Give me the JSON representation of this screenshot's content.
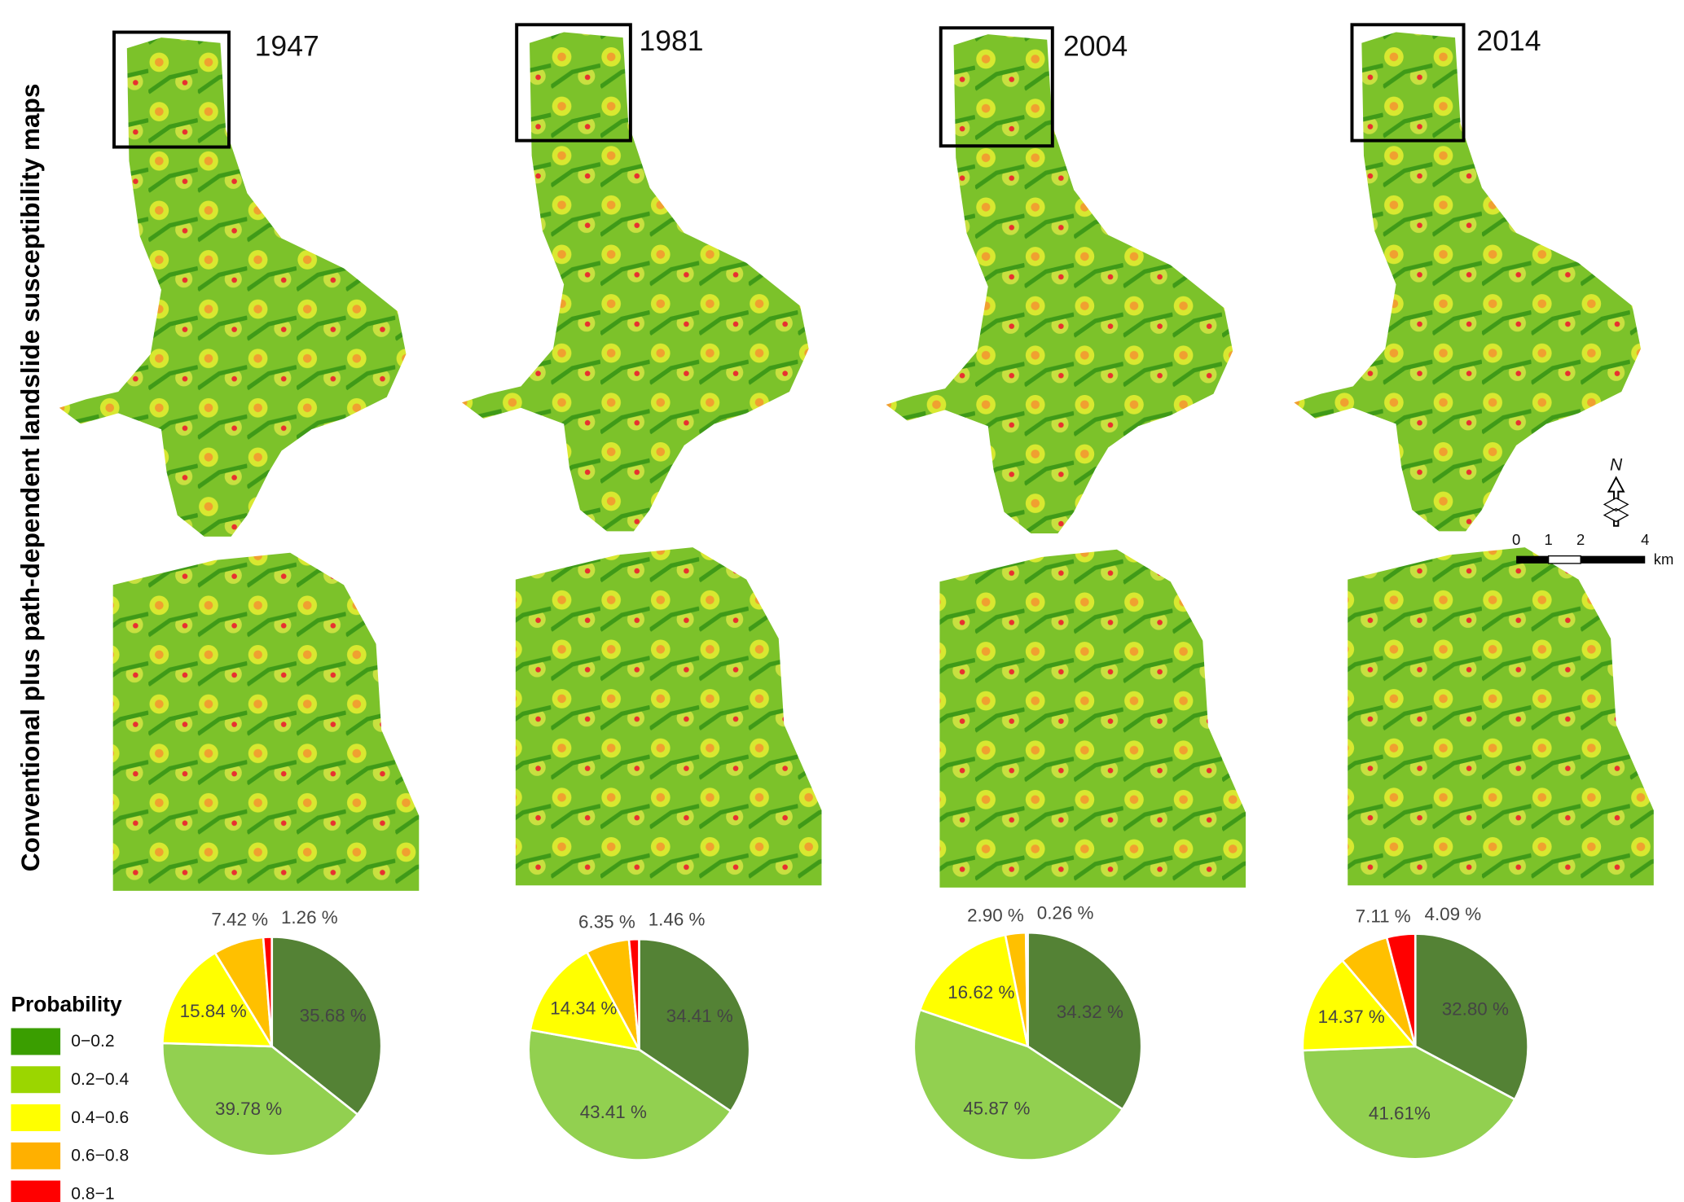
{
  "title": "Conventional plus path-dependent landslide susceptibility maps",
  "legend": {
    "title": "Probability",
    "labels": [
      "0−0.2",
      "0.2−0.4",
      "0.4−0.6",
      "0.6−0.8",
      "0.8−1"
    ],
    "colors": [
      "#3a9e00",
      "#9bd600",
      "#ffff00",
      "#ffb000",
      "#ff0000"
    ]
  },
  "scale_bar": {
    "ticks": [
      "0",
      "1",
      "2",
      "4"
    ],
    "unit": "km"
  },
  "north": "N",
  "chart_data": [
    {
      "type": "pie",
      "title": "1947",
      "values": [
        35.68,
        39.78,
        15.84,
        7.42,
        1.26
      ],
      "value_labels": [
        "35.68 %",
        "39.78 %",
        "15.84 %",
        "7.42 %",
        "1.26 %"
      ],
      "colors": [
        "#548235",
        "#92d050",
        "#ffff00",
        "#ffc000",
        "#ff0000"
      ]
    },
    {
      "type": "pie",
      "title": "1981",
      "values": [
        34.41,
        43.41,
        14.34,
        6.35,
        1.46
      ],
      "value_labels": [
        "34.41 %",
        "43.41 %",
        "14.34 %",
        "6.35 %",
        "1.46 %"
      ],
      "colors": [
        "#548235",
        "#92d050",
        "#ffff00",
        "#ffc000",
        "#ff0000"
      ]
    },
    {
      "type": "pie",
      "title": "2004",
      "values": [
        34.32,
        45.87,
        16.62,
        2.9,
        0.26
      ],
      "value_labels": [
        "34.32 %",
        "45.87 %",
        "16.62 %",
        "2.90 %",
        "0.26 %"
      ],
      "colors": [
        "#548235",
        "#92d050",
        "#ffff00",
        "#ffc000",
        "#ff0000"
      ]
    },
    {
      "type": "pie",
      "title": "2014",
      "values": [
        32.8,
        41.61,
        14.37,
        7.11,
        4.09
      ],
      "value_labels": [
        "32.80 %",
        "41.61%",
        "14.37 %",
        "7.11 %",
        "4.09 %"
      ],
      "colors": [
        "#548235",
        "#92d050",
        "#ffff00",
        "#ffc000",
        "#ff0000"
      ]
    }
  ]
}
